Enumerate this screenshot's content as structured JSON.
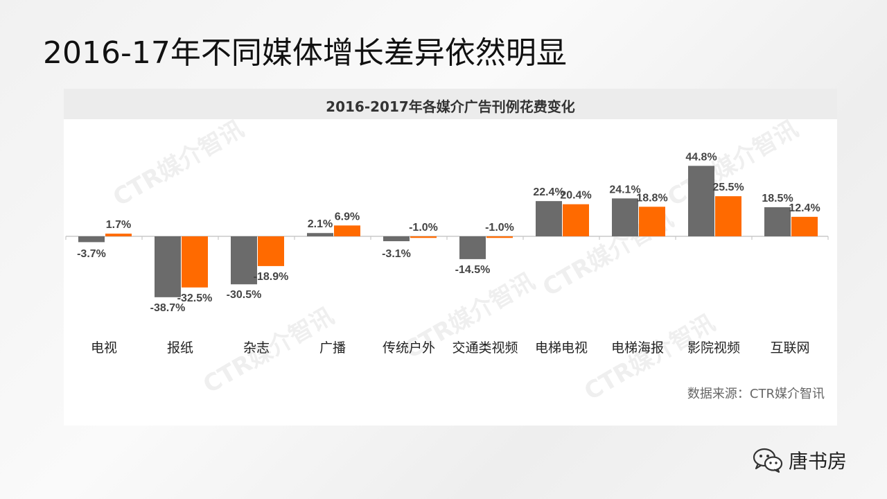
{
  "page": {
    "title": "2016-17年不同媒体增长差异依然明显"
  },
  "chart_data": {
    "type": "bar",
    "title": "2016-2017年各媒介广告刊例花费变化",
    "categories": [
      "电视",
      "报纸",
      "杂志",
      "广播",
      "传统户外",
      "交通类视频",
      "电梯电视",
      "电梯海报",
      "影院视频",
      "互联网"
    ],
    "series": [
      {
        "values": [
          -3.7,
          -38.7,
          -30.5,
          2.1,
          -3.1,
          -14.5,
          22.4,
          24.1,
          44.8,
          18.5
        ],
        "color": "#6b6b6b"
      },
      {
        "values": [
          1.7,
          -32.5,
          -18.9,
          6.9,
          -1.0,
          -1.0,
          20.4,
          18.8,
          25.5,
          12.4
        ],
        "color": "#ff6a00"
      }
    ],
    "value_suffix": "%",
    "xlabel": "",
    "ylabel": "",
    "ylim": [
      -50,
      50
    ],
    "grid": false,
    "legend": "none"
  },
  "source": {
    "text": "数据来源：CTR媒介智讯"
  },
  "watermark": {
    "text": "CTR媒介智讯"
  },
  "brand": {
    "name": "唐书房",
    "icon": "wechat-icon"
  }
}
